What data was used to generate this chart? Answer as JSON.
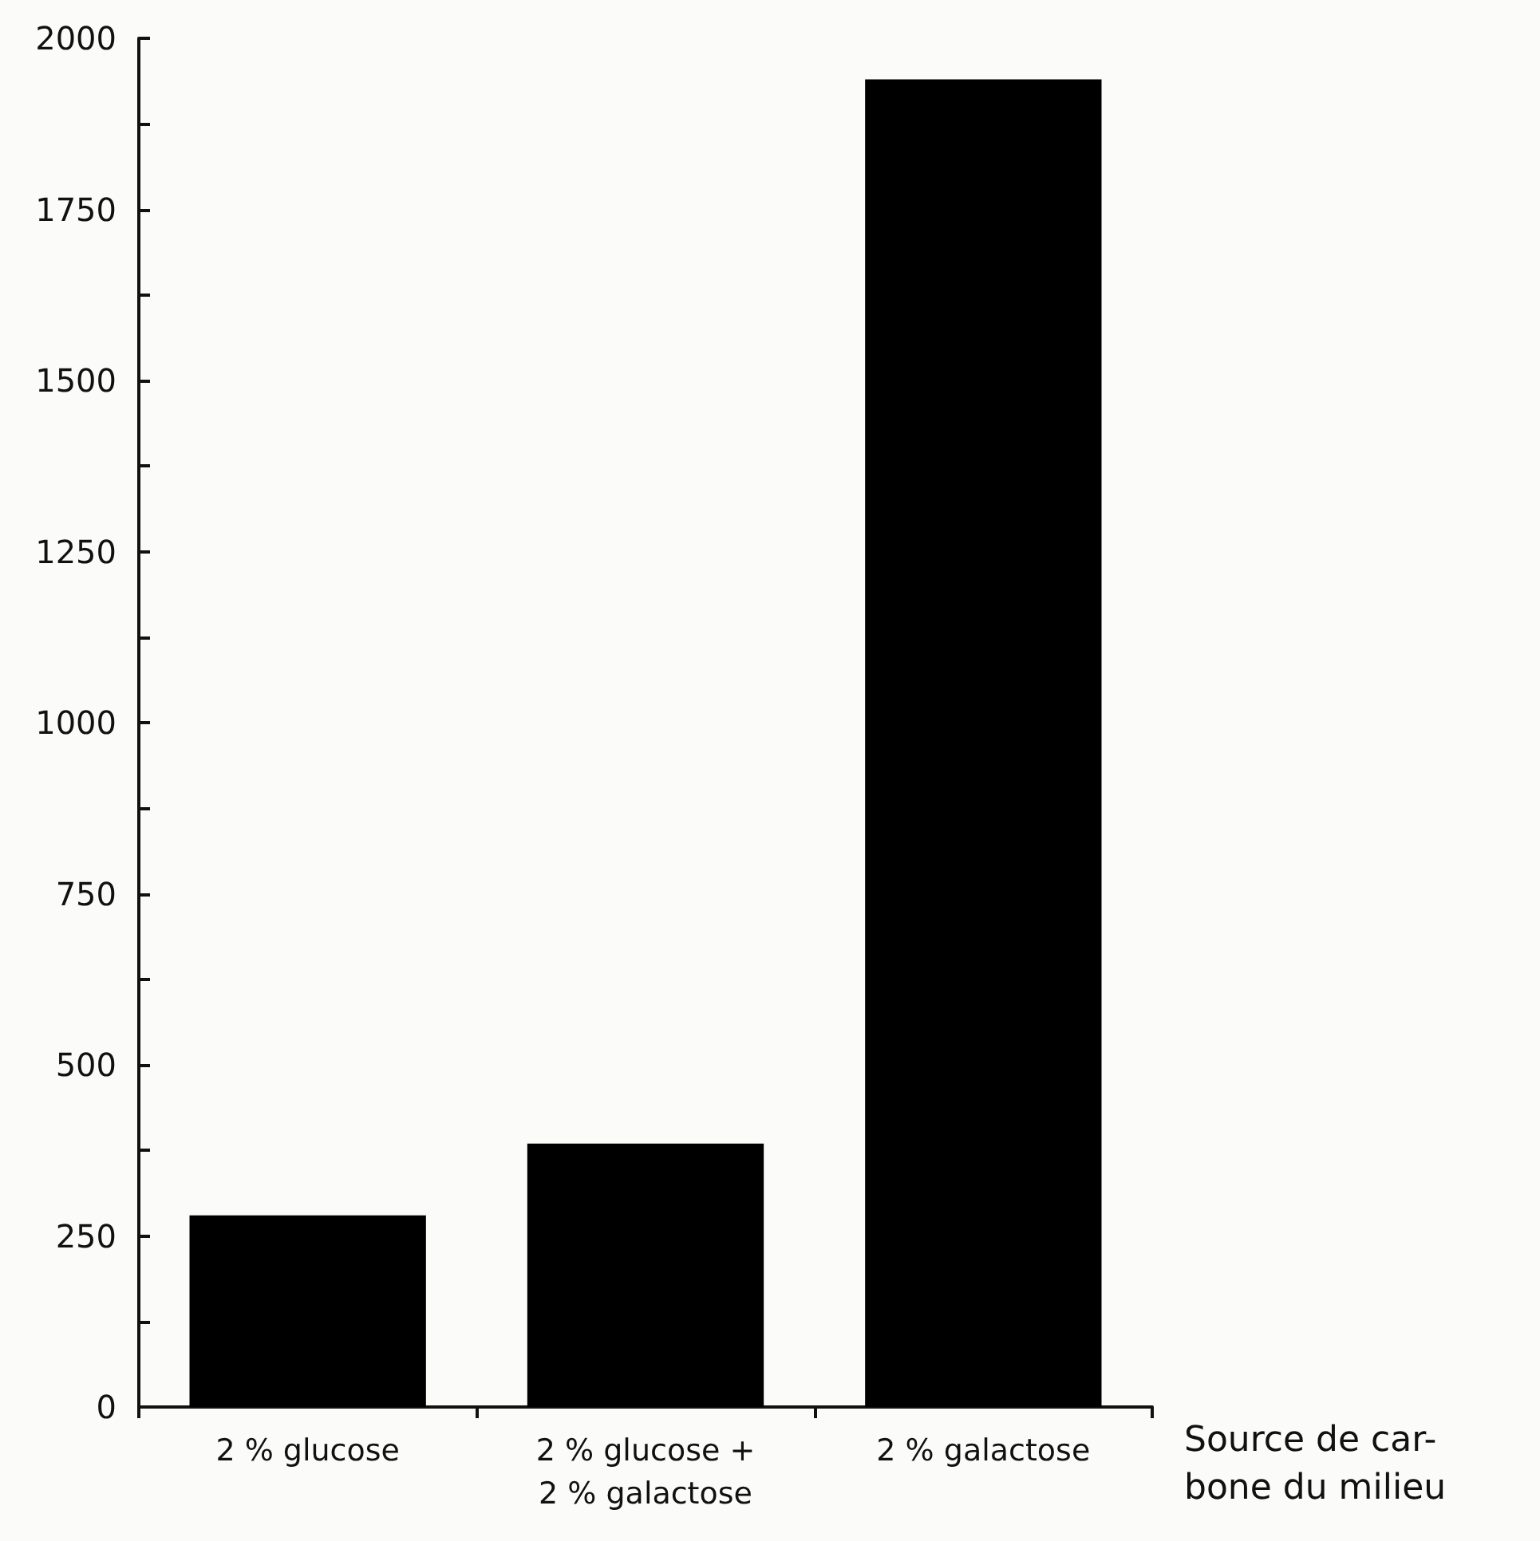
{
  "chart_data": {
    "type": "bar",
    "categories": [
      "2 % glucose",
      "2 % glucose +\n2 % galactose",
      "2 % galactose"
    ],
    "values": [
      280,
      385,
      1940
    ],
    "color": "#000000",
    "xlabel": "Source de car-\nbone du milieu",
    "ylim": [
      0,
      2000
    ],
    "yticks": [
      0,
      {
        "value": 125,
        "label": null
      },
      250,
      {
        "value": 375,
        "label": null
      },
      500,
      {
        "value": 625,
        "label": null
      },
      750,
      {
        "value": 875,
        "label": null
      },
      1000,
      {
        "value": 1125,
        "label": null
      },
      1250,
      {
        "value": 1375,
        "label": null
      },
      1500,
      {
        "value": 1625,
        "label": null
      },
      1750,
      {
        "value": 1875,
        "label": null
      },
      2000
    ]
  }
}
